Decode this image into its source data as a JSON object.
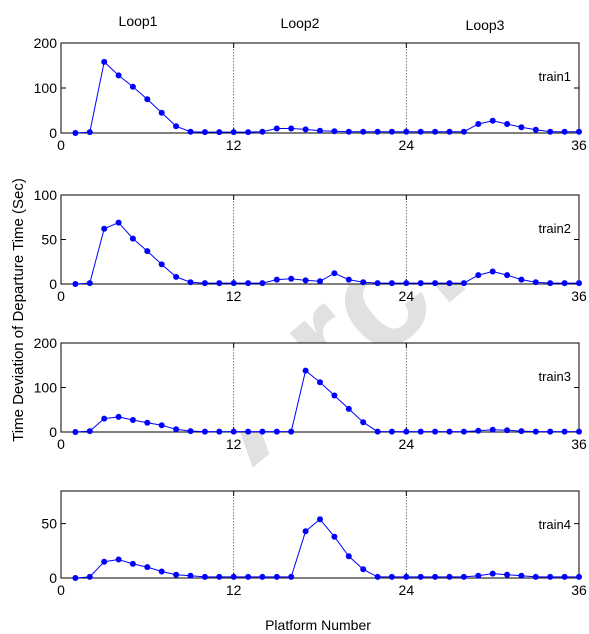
{
  "watermark": "Arch",
  "chart_data": {
    "type": "line",
    "loop_labels": [
      "Loop1",
      "Loop2",
      "Loop3"
    ],
    "loop_boundaries": [
      12,
      24
    ],
    "xlabel": "Platform Number",
    "ylabel": "Time Deviation of Departure Time (Sec)",
    "xlim": [
      0,
      36
    ],
    "xticks": [
      0,
      12,
      24,
      36
    ],
    "colors": {
      "series": "#0000ff",
      "axes": "#000000",
      "divider": "#555555"
    },
    "x": [
      1,
      2,
      3,
      4,
      5,
      6,
      7,
      8,
      9,
      10,
      11,
      12,
      13,
      14,
      15,
      16,
      17,
      18,
      19,
      20,
      21,
      22,
      23,
      24,
      25,
      26,
      27,
      28,
      29,
      30,
      31,
      32,
      33,
      34,
      35,
      36
    ],
    "panels": [
      {
        "name": "train1",
        "ylim": [
          0,
          200
        ],
        "yticks": [
          0,
          100,
          200
        ],
        "values": [
          0,
          2,
          158,
          128,
          103,
          75,
          45,
          15,
          3,
          2,
          2,
          2,
          2,
          3,
          10,
          10,
          8,
          5,
          4,
          3,
          3,
          3,
          3,
          3,
          3,
          3,
          3,
          3,
          20,
          27,
          20,
          13,
          7,
          3,
          3,
          3
        ]
      },
      {
        "name": "train2",
        "ylim": [
          0,
          100
        ],
        "yticks": [
          0,
          50,
          100
        ],
        "values": [
          0,
          1,
          62,
          69,
          51,
          37,
          22,
          8,
          2,
          1,
          1,
          1,
          1,
          1,
          5,
          6,
          4,
          3,
          12,
          5,
          2,
          1,
          1,
          1,
          1,
          1,
          1,
          1,
          10,
          14,
          10,
          5,
          2,
          1,
          1,
          1
        ]
      },
      {
        "name": "train3",
        "ylim": [
          0,
          200
        ],
        "yticks": [
          0,
          100,
          200
        ],
        "values": [
          0,
          2,
          30,
          34,
          27,
          21,
          15,
          6,
          2,
          1,
          1,
          1,
          1,
          1,
          1,
          1,
          138,
          112,
          82,
          52,
          22,
          1,
          1,
          1,
          1,
          1,
          1,
          1,
          3,
          5,
          4,
          2,
          1,
          1,
          1,
          1
        ]
      },
      {
        "name": "train4",
        "ylim": [
          0,
          80
        ],
        "yticks": [
          0,
          50
        ],
        "values": [
          0,
          1,
          15,
          17,
          13,
          10,
          6,
          3,
          2,
          1,
          1,
          1,
          1,
          1,
          1,
          1,
          43,
          54,
          38,
          20,
          8,
          1,
          1,
          1,
          1,
          1,
          1,
          1,
          2,
          4,
          3,
          2,
          1,
          1,
          1,
          1
        ]
      }
    ]
  }
}
